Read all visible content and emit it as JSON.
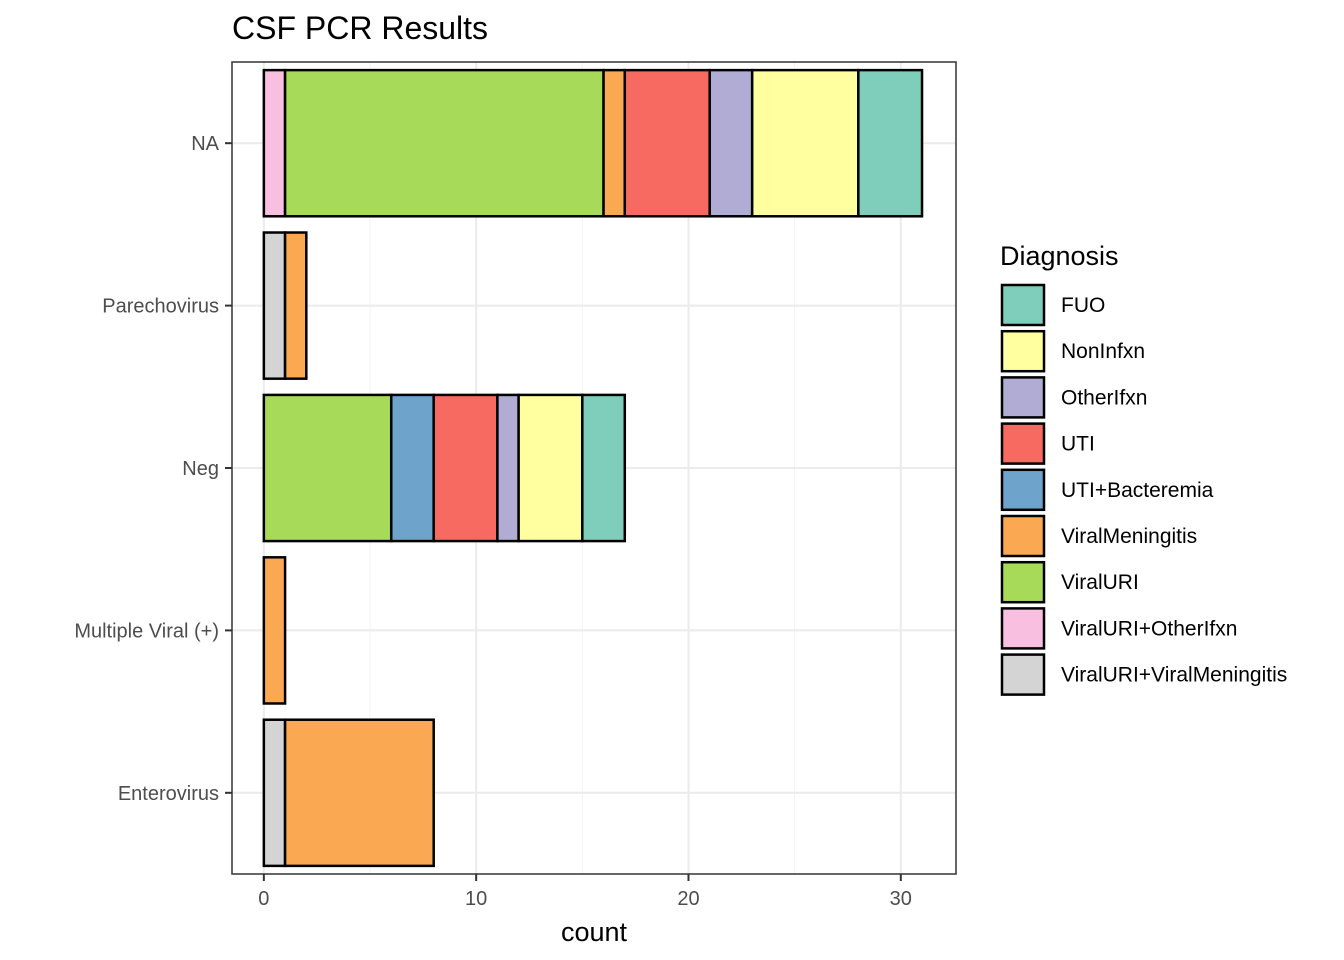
{
  "chart_data": {
    "type": "bar",
    "orientation": "horizontal",
    "stacked": true,
    "title": "CSF PCR Results",
    "xlabel": "count",
    "ylabel": "",
    "xlim": [
      -1.5,
      32.6
    ],
    "xticks": [
      0,
      10,
      20,
      30
    ],
    "grid": true,
    "categories": [
      "Enterovirus",
      "Multiple Viral (+)",
      "Neg",
      "Parechovirus",
      "NA"
    ],
    "legend": {
      "title": "Diagnosis",
      "position": "right",
      "entries": [
        {
          "name": "FUO",
          "color": "#7FCDBB"
        },
        {
          "name": "NonInfxn",
          "color": "#FFFFA0"
        },
        {
          "name": "OtherIfxn",
          "color": "#B1ACD3"
        },
        {
          "name": "UTI",
          "color": "#F66A61"
        },
        {
          "name": "UTI+Bacteremia",
          "color": "#6EA3CB"
        },
        {
          "name": "ViralMeningitis",
          "color": "#FBA853"
        },
        {
          "name": "ViralURI",
          "color": "#A8DA5A"
        },
        {
          "name": "ViralURI+OtherIfxn",
          "color": "#F8BFE0"
        },
        {
          "name": "ViralURI+ViralMeningitis",
          "color": "#D4D4D4"
        }
      ]
    },
    "series": [
      {
        "name": "ViralURI+ViralMeningitis",
        "values": [
          1,
          0,
          0,
          1,
          0
        ]
      },
      {
        "name": "ViralURI+OtherIfxn",
        "values": [
          0,
          0,
          0,
          0,
          1
        ]
      },
      {
        "name": "ViralURI",
        "values": [
          0,
          0,
          6,
          0,
          15
        ]
      },
      {
        "name": "ViralMeningitis",
        "values": [
          7,
          1,
          0,
          1,
          1
        ]
      },
      {
        "name": "UTI+Bacteremia",
        "values": [
          0,
          0,
          2,
          0,
          0
        ]
      },
      {
        "name": "UTI",
        "values": [
          0,
          0,
          3,
          0,
          4
        ]
      },
      {
        "name": "OtherIfxn",
        "values": [
          0,
          0,
          1,
          0,
          2
        ]
      },
      {
        "name": "NonInfxn",
        "values": [
          0,
          0,
          3,
          0,
          5
        ]
      },
      {
        "name": "FUO",
        "values": [
          0,
          0,
          2,
          0,
          3
        ]
      }
    ]
  }
}
